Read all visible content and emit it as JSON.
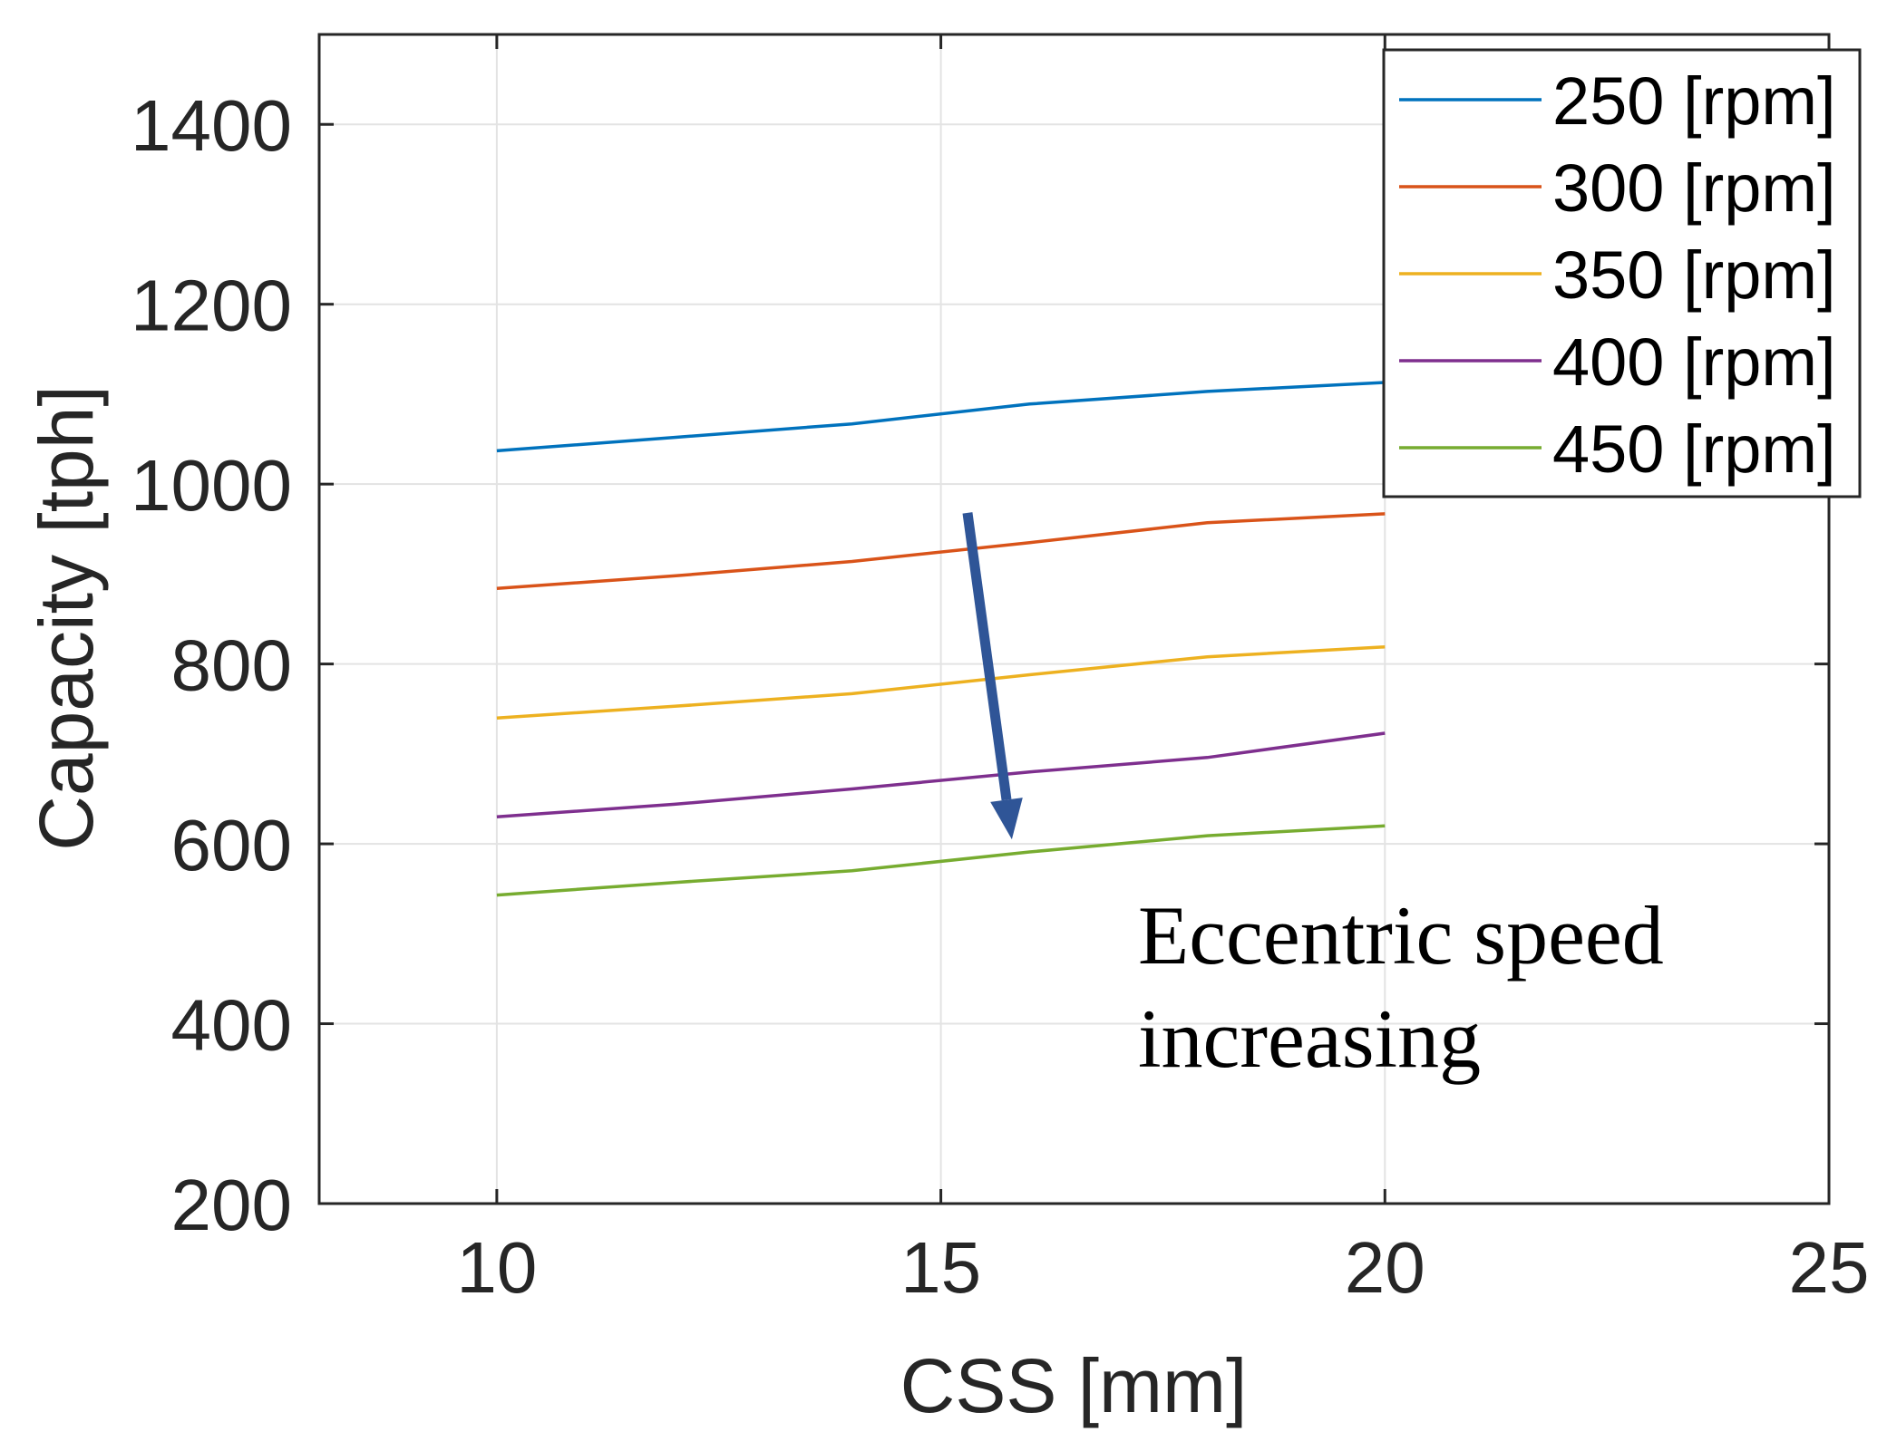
{
  "chart_data": {
    "type": "line",
    "title": "",
    "xlabel": "CSS [mm]",
    "ylabel": "Capacity [tph]",
    "xlim": [
      8,
      25
    ],
    "ylim": [
      200,
      1500
    ],
    "xticks": [
      10,
      15,
      20,
      25
    ],
    "xtick_labels": [
      "10",
      "15",
      "20",
      "25"
    ],
    "yticks": [
      200,
      400,
      600,
      800,
      1000,
      1200,
      1400
    ],
    "ytick_labels": [
      "200",
      "400",
      "600",
      "800",
      "1000",
      "1200",
      "1400"
    ],
    "grid": true,
    "legend_position": "top-right",
    "x": [
      10,
      12,
      14,
      16,
      18,
      20
    ],
    "series": [
      {
        "name": "250 [rpm]",
        "color": "#0072BD",
        "values": [
          1037,
          1052,
          1067,
          1089,
          1103,
          1113
        ]
      },
      {
        "name": "300 [rpm]",
        "color": "#D95319",
        "values": [
          884,
          898,
          914,
          935,
          957,
          967
        ]
      },
      {
        "name": "350 [rpm]",
        "color": "#EDB120",
        "values": [
          740,
          753,
          767,
          788,
          808,
          819
        ]
      },
      {
        "name": "400 [rpm]",
        "color": "#7E2F8E",
        "values": [
          630,
          644,
          661,
          680,
          696,
          723
        ]
      },
      {
        "name": "450 [rpm]",
        "color": "#77AC30",
        "values": [
          543,
          557,
          570,
          591,
          609,
          620
        ]
      }
    ],
    "annotation": {
      "lines": [
        "Eccentric speed",
        "increasing"
      ],
      "arrow_color": "#2F5597",
      "arrow_from": [
        15.3,
        968
      ],
      "arrow_to": [
        15.8,
        605
      ]
    }
  }
}
